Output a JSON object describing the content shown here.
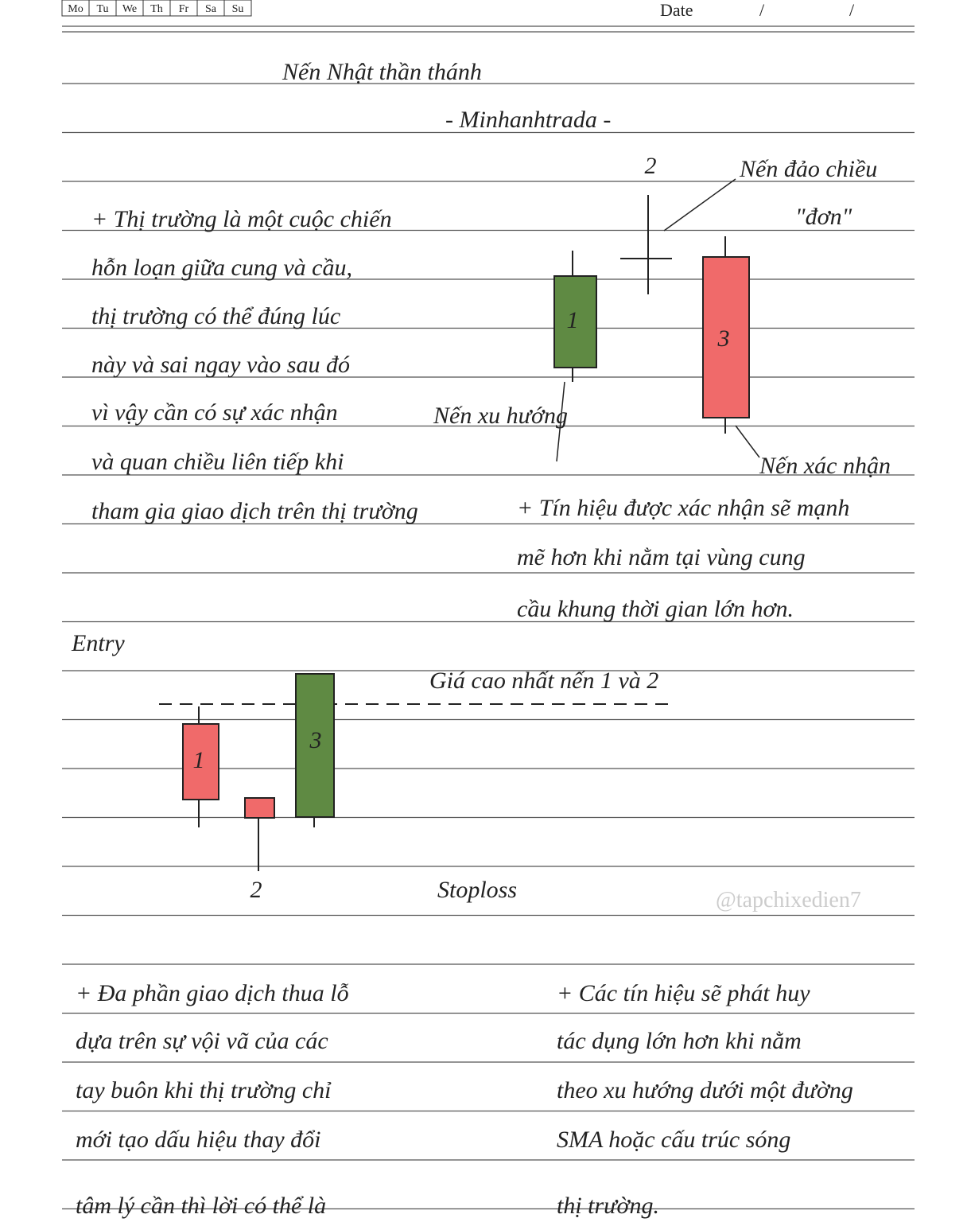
{
  "header": {
    "weekdays": [
      "Mo",
      "Tu",
      "We",
      "Th",
      "Fr",
      "Sa",
      "Su"
    ],
    "date_label": "Date",
    "date_separators": [
      "/",
      "/"
    ]
  },
  "title": "Nến Nhật thần thánh",
  "subtitle": "- Minhanhtrada -",
  "intro": {
    "lines": [
      "+ Thị trường là một cuộc chiến",
      "hỗn loạn giữa cung và cầu,",
      "thị trường có thể đúng lúc",
      "này và sai ngay vào sau đó",
      "vì vậy cần có sự xác nhận",
      "và quan chiều liên tiếp khi",
      "tham gia giao dịch trên thị trường"
    ]
  },
  "diagram1": {
    "candle_labels": [
      "1",
      "2",
      "3"
    ],
    "reversal_label": "Nến đảo chiều",
    "reversal_sublabel": "\"đơn\"",
    "trend_label": "Nến xu hướng",
    "confirm_label": "Nến xác nhận"
  },
  "confirmation_note": {
    "lines": [
      "+ Tín hiệu được xác nhận sẽ mạnh",
      "mẽ hơn khi nằm tại vùng cung",
      "cầu khung thời gian lớn hơn."
    ]
  },
  "entry_label": "Entry",
  "diagram2": {
    "candle_labels": [
      "1",
      "2",
      "3"
    ],
    "high_label": "Giá cao nhất nến 1 và 2",
    "stoploss_label": "Stoploss"
  },
  "watermark": "@tapchixedien7",
  "losses_note": {
    "lines": [
      "+ Đa phần giao dịch thua lỗ",
      "dựa trên sự vội vã của các",
      "tay buôn khi thị trường chỉ",
      "mới tạo dấu hiệu thay đổi",
      "tâm lý cần thì lời có thể là"
    ]
  },
  "trend_note": {
    "lines": [
      "+ Các tín hiệu sẽ phát huy",
      "tác dụng lớn hơn khi nằm",
      "theo xu hướng dưới một đường",
      "SMA hoặc cấu trúc sóng",
      "thị trường."
    ]
  }
}
